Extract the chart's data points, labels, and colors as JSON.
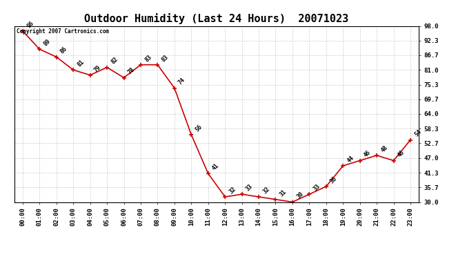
{
  "title": "Outdoor Humidity (Last 24 Hours)  20071023",
  "copyright_text": "Copyright 2007 Cartronics.com",
  "x_labels": [
    "00:00",
    "01:00",
    "02:00",
    "03:00",
    "04:00",
    "05:00",
    "06:00",
    "07:00",
    "08:00",
    "09:00",
    "10:00",
    "11:00",
    "12:00",
    "13:00",
    "14:00",
    "15:00",
    "16:00",
    "17:00",
    "18:00",
    "19:00",
    "20:00",
    "21:00",
    "22:00",
    "23:00"
  ],
  "y_values": [
    96,
    89,
    86,
    81,
    79,
    82,
    78,
    83,
    83,
    74,
    56,
    41,
    32,
    33,
    32,
    31,
    30,
    33,
    36,
    44,
    46,
    48,
    46,
    54
  ],
  "point_labels": [
    "96",
    "89",
    "86",
    "81",
    "79",
    "82",
    "78",
    "83",
    "83",
    "74",
    "56",
    "41",
    "32",
    "33",
    "32",
    "31",
    "30",
    "33",
    "36",
    "44",
    "46",
    "48",
    "46",
    "54"
  ],
  "line_color": "#cc0000",
  "marker_color": "#cc0000",
  "background_color": "#ffffff",
  "grid_color": "#cccccc",
  "ylim": [
    30.0,
    98.0
  ],
  "yticks": [
    30.0,
    35.7,
    41.3,
    47.0,
    52.7,
    58.3,
    64.0,
    69.7,
    75.3,
    81.0,
    86.7,
    92.3,
    98.0
  ],
  "ytick_labels": [
    "30.0",
    "35.7",
    "41.3",
    "47.0",
    "52.7",
    "58.3",
    "64.0",
    "69.7",
    "75.3",
    "81.0",
    "86.7",
    "92.3",
    "98.0"
  ],
  "title_fontsize": 11,
  "label_fontsize": 6,
  "tick_fontsize": 6.5
}
